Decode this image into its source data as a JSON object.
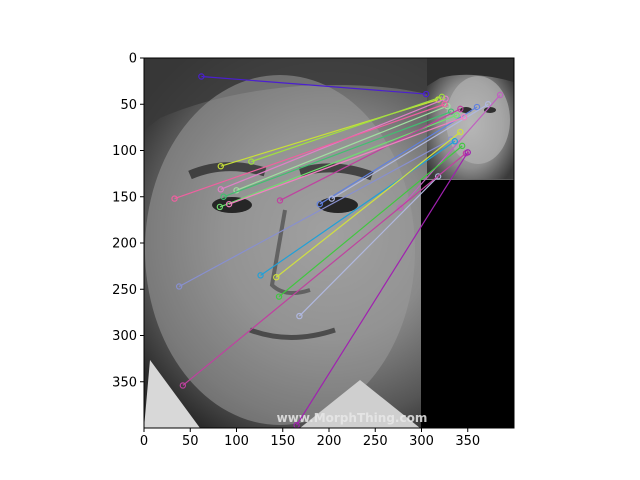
{
  "image": {
    "watermark_text": "www.MorphThing.com",
    "content": "grayscale face photo composite with a smaller second face inset at top-right and a black region below it",
    "colors": {
      "padding_region": "#000000",
      "axes": "#000000"
    }
  },
  "axes": {
    "xlim": [
      0,
      400
    ],
    "ylim": [
      400,
      0
    ],
    "y_inverted": true,
    "x_ticks": [
      {
        "value": 0,
        "label": "0"
      },
      {
        "value": 50,
        "label": "50"
      },
      {
        "value": 100,
        "label": "100"
      },
      {
        "value": 150,
        "label": "150"
      },
      {
        "value": 200,
        "label": "200"
      },
      {
        "value": 250,
        "label": "250"
      },
      {
        "value": 300,
        "label": "300"
      },
      {
        "value": 350,
        "label": "350"
      }
    ],
    "y_ticks": [
      {
        "value": 0,
        "label": "0"
      },
      {
        "value": 50,
        "label": "50"
      },
      {
        "value": 100,
        "label": "100"
      },
      {
        "value": 150,
        "label": "150"
      },
      {
        "value": 200,
        "label": "200"
      },
      {
        "value": 250,
        "label": "250"
      },
      {
        "value": 300,
        "label": "300"
      },
      {
        "value": 350,
        "label": "350"
      }
    ]
  },
  "matches": [
    {
      "from": [
        62,
        20
      ],
      "to": [
        305,
        39
      ],
      "color": "#4b1fd0"
    },
    {
      "from": [
        83,
        117
      ],
      "to": [
        318,
        45
      ],
      "color": "#c8e038"
    },
    {
      "from": [
        83,
        142
      ],
      "to": [
        326,
        44
      ],
      "color": "#e080c8"
    },
    {
      "from": [
        100,
        143
      ],
      "to": [
        328,
        52
      ],
      "color": "#a0e0a0"
    },
    {
      "from": [
        33,
        152
      ],
      "to": [
        325,
        50
      ],
      "color": "#f060a0"
    },
    {
      "from": [
        86,
        150
      ],
      "to": [
        332,
        58
      ],
      "color": "#40c070"
    },
    {
      "from": [
        82,
        161
      ],
      "to": [
        338,
        62
      ],
      "color": "#70e070"
    },
    {
      "from": [
        147,
        154
      ],
      "to": [
        342,
        55
      ],
      "color": "#c040a0"
    },
    {
      "from": [
        190,
        158
      ],
      "to": [
        360,
        53
      ],
      "color": "#6080e0"
    },
    {
      "from": [
        203,
        152
      ],
      "to": [
        372,
        50
      ],
      "color": "#b0b8e0"
    },
    {
      "from": [
        277,
        162
      ],
      "to": [
        385,
        40
      ],
      "color": "#c060c0"
    },
    {
      "from": [
        38,
        247
      ],
      "to": [
        332,
        88
      ],
      "color": "#8890d0"
    },
    {
      "from": [
        126,
        235
      ],
      "to": [
        336,
        90
      ],
      "color": "#20a0d8"
    },
    {
      "from": [
        143,
        237
      ],
      "to": [
        342,
        80
      ],
      "color": "#d0e040"
    },
    {
      "from": [
        146,
        258
      ],
      "to": [
        344,
        95
      ],
      "color": "#40c840"
    },
    {
      "from": [
        168,
        279
      ],
      "to": [
        318,
        128
      ],
      "color": "#b0b8e0"
    },
    {
      "from": [
        42,
        354
      ],
      "to": [
        348,
        103
      ],
      "color": "#c040a0"
    },
    {
      "from": [
        165,
        397
      ],
      "to": [
        350,
        102
      ],
      "color": "#a020b0"
    },
    {
      "from": [
        116,
        112
      ],
      "to": [
        322,
        42
      ],
      "color": "#a0e040"
    },
    {
      "from": [
        92,
        158
      ],
      "to": [
        346,
        64
      ],
      "color": "#f080c0"
    }
  ]
}
